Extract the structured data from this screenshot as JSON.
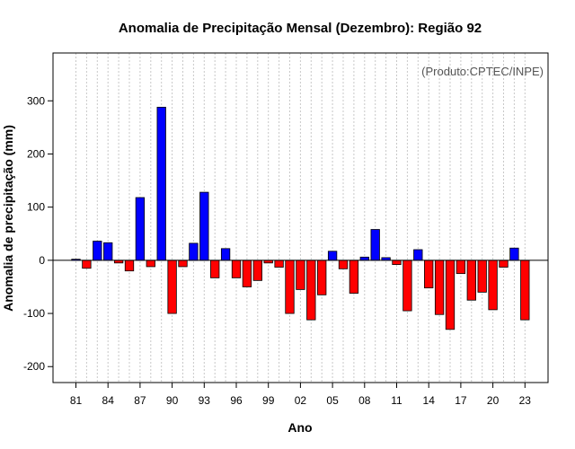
{
  "chart_data": {
    "type": "bar",
    "title": "Anomalia de Precipitação Mensal (Dezembro): Região 92",
    "credit": "(Produto:CPTEC/INPE)",
    "xlabel": "Ano",
    "ylabel": "Anomalia de precipitação (mm)",
    "ylim": [
      -230,
      390
    ],
    "yticks": [
      -200,
      -100,
      0,
      100,
      200,
      300
    ],
    "xtick_labels": [
      "81",
      "84",
      "87",
      "90",
      "93",
      "96",
      "99",
      "02",
      "05",
      "08",
      "11",
      "14",
      "17",
      "20",
      "23"
    ],
    "categories": [
      "1981",
      "1982",
      "1983",
      "1984",
      "1985",
      "1986",
      "1987",
      "1988",
      "1989",
      "1990",
      "1991",
      "1992",
      "1993",
      "1994",
      "1995",
      "1996",
      "1997",
      "1998",
      "1999",
      "2000",
      "2001",
      "2002",
      "2003",
      "2004",
      "2005",
      "2006",
      "2007",
      "2008",
      "2009",
      "2010",
      "2011",
      "2012",
      "2013",
      "2014",
      "2015",
      "2016",
      "2017",
      "2018",
      "2019",
      "2020",
      "2021",
      "2022",
      "2023"
    ],
    "values": [
      2,
      -15,
      36,
      33,
      -5,
      -20,
      118,
      -12,
      288,
      -100,
      -12,
      32,
      128,
      -33,
      22,
      -33,
      -50,
      -38,
      -5,
      -13,
      -100,
      -55,
      -112,
      -65,
      17,
      -16,
      -62,
      6,
      58,
      5,
      -8,
      -95,
      20,
      -52,
      -102,
      -130,
      -25,
      -75,
      -60,
      -93,
      -13,
      23,
      -112
    ],
    "colors": {
      "positive": "#0000ff",
      "negative": "#ff0000",
      "zero_line": "#000000",
      "grid": "#c8c8c8"
    },
    "grid": true
  }
}
